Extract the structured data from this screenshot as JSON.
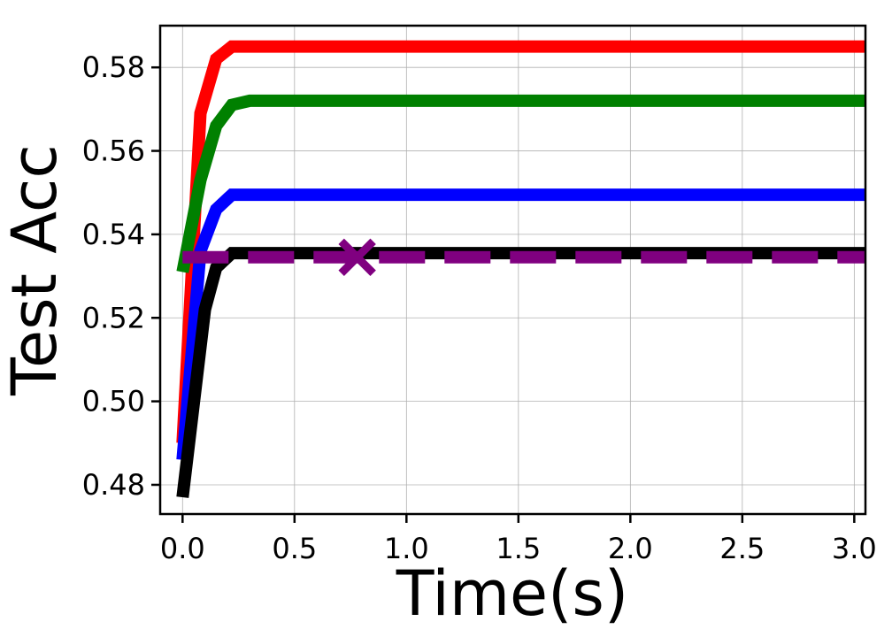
{
  "chart_data": {
    "type": "line",
    "title": "",
    "xlabel": "Time(s)",
    "ylabel": "Test Acc",
    "xlim": [
      -0.1,
      3.05
    ],
    "ylim": [
      0.473,
      0.59
    ],
    "xticks": [
      0.0,
      0.5,
      1.0,
      1.5,
      2.0,
      2.5,
      3.0
    ],
    "xtick_labels": [
      "0.0",
      "0.5",
      "1.0",
      "1.5",
      "2.0",
      "2.5",
      "3.0"
    ],
    "yticks": [
      0.48,
      0.5,
      0.52,
      0.54,
      0.56,
      0.58
    ],
    "ytick_labels": [
      "0.48",
      "0.50",
      "0.52",
      "0.54",
      "0.56",
      "0.58"
    ],
    "grid": true,
    "legend": "none",
    "series": [
      {
        "color": "#ff0000",
        "style": "solid",
        "x": [
          0.0,
          0.08,
          0.15,
          0.22,
          0.3,
          3.05
        ],
        "y": [
          0.49,
          0.569,
          0.582,
          0.585,
          0.585,
          0.585
        ]
      },
      {
        "color": "#008000",
        "style": "solid",
        "x": [
          0.0,
          0.08,
          0.15,
          0.22,
          0.3,
          3.05
        ],
        "y": [
          0.531,
          0.553,
          0.566,
          0.571,
          0.572,
          0.572
        ]
      },
      {
        "color": "#0000ff",
        "style": "solid",
        "x": [
          0.0,
          0.08,
          0.15,
          0.22,
          0.3,
          3.05
        ],
        "y": [
          0.486,
          0.536,
          0.546,
          0.5495,
          0.5495,
          0.5495
        ]
      },
      {
        "color": "#000000",
        "style": "solid",
        "x": [
          0.0,
          0.1,
          0.15,
          0.22,
          0.3,
          3.05
        ],
        "y": [
          0.477,
          0.522,
          0.532,
          0.5355,
          0.5355,
          0.5355
        ]
      },
      {
        "color": "#800080",
        "style": "dashed",
        "x": [
          0.0,
          3.05
        ],
        "y": [
          0.5345,
          0.5345
        ]
      }
    ],
    "markers": [
      {
        "color": "#800080",
        "symbol": "x",
        "x": 0.78,
        "y": 0.5345
      }
    ]
  }
}
